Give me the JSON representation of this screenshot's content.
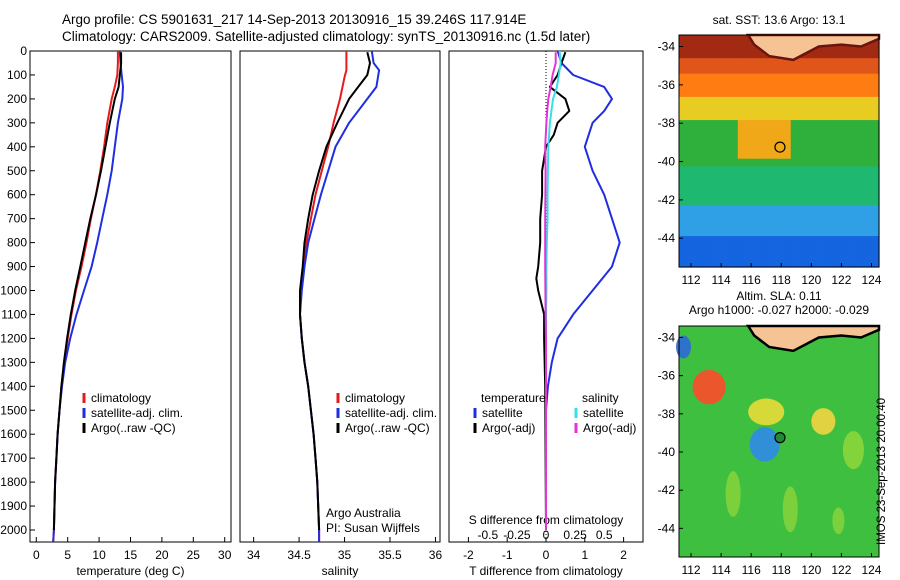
{
  "header": {
    "title1": "Argo profile: CS 5901631_217 14-Sep-2013 20130916_15 39.246S 117.914E",
    "title2": "Climatology: CARS2009. Satellite-adjusted climatology: synTS_20130916.nc (1.5d later)"
  },
  "colors": {
    "climatology": "#e41a1c",
    "satellite": "#1f2ee0",
    "argo": "#000000",
    "satellite_s": "#33e0e8",
    "argo_s": "#e632d6"
  },
  "notes": {
    "agency": "Argo Australia",
    "pi": "PI: Susan Wijffels",
    "credit": "IMOS 23-Sep-2013 20:00:40"
  },
  "chart_data": [
    {
      "type": "line",
      "xlabel": "temperature (deg C)",
      "ylabel": "",
      "xlim": [
        -1,
        31
      ],
      "ylim": [
        2100,
        0
      ],
      "xticks": [
        "0",
        "5",
        "10",
        "15",
        "20",
        "25",
        "30"
      ],
      "yticks": [
        "0",
        "100",
        "200",
        "300",
        "400",
        "500",
        "600",
        "700",
        "800",
        "900",
        "1000",
        "1100",
        "1200",
        "1300",
        "1400",
        "1500",
        "1600",
        "1700",
        "1800",
        "1900",
        "2000"
      ],
      "legend": [
        "climatology",
        "satellite-adj. clim.",
        "Argo(..raw -QC)"
      ],
      "series": [
        {
          "name": "climatology",
          "color": "#e41a1c",
          "points": [
            [
              13,
              0
            ],
            [
              13,
              50
            ],
            [
              12.9,
              100
            ],
            [
              12.5,
              150
            ],
            [
              12,
              200
            ],
            [
              11.3,
              300
            ],
            [
              10.8,
              400
            ],
            [
              10.2,
              500
            ],
            [
              9.5,
              600
            ],
            [
              8.7,
              700
            ],
            [
              8,
              800
            ],
            [
              7.2,
              900
            ],
            [
              6.3,
              1000
            ],
            [
              5.6,
              1100
            ],
            [
              5,
              1200
            ],
            [
              4.5,
              1300
            ],
            [
              4,
              1400
            ],
            [
              3.7,
              1500
            ],
            [
              3.4,
              1600
            ],
            [
              3.2,
              1700
            ],
            [
              3,
              1800
            ],
            [
              2.9,
              1900
            ],
            [
              2.8,
              2000
            ],
            [
              2.7,
              2050
            ]
          ]
        },
        {
          "name": "satellite-adj. clim.",
          "color": "#1f2ee0",
          "points": [
            [
              13.3,
              0
            ],
            [
              13.4,
              50
            ],
            [
              13.6,
              100
            ],
            [
              13.8,
              150
            ],
            [
              13.7,
              200
            ],
            [
              13,
              300
            ],
            [
              12.5,
              400
            ],
            [
              12,
              500
            ],
            [
              11.3,
              600
            ],
            [
              10.5,
              700
            ],
            [
              9.7,
              800
            ],
            [
              8.8,
              900
            ],
            [
              7.6,
              1000
            ],
            [
              6.4,
              1100
            ],
            [
              5.4,
              1200
            ],
            [
              4.6,
              1300
            ],
            [
              4.1,
              1400
            ],
            [
              3.7,
              1500
            ],
            [
              3.4,
              1600
            ],
            [
              3.2,
              1700
            ],
            [
              3,
              1800
            ],
            [
              2.9,
              1900
            ],
            [
              2.8,
              2000
            ],
            [
              2.7,
              2050
            ]
          ]
        },
        {
          "name": "Argo(..raw -QC)",
          "color": "#000000",
          "points": [
            [
              13.5,
              5
            ],
            [
              13.5,
              50
            ],
            [
              13.3,
              100
            ],
            [
              13.1,
              150
            ],
            [
              12.5,
              200
            ],
            [
              11.7,
              300
            ],
            [
              11,
              400
            ],
            [
              10.3,
              500
            ],
            [
              9.5,
              600
            ],
            [
              8.6,
              700
            ],
            [
              7.8,
              800
            ],
            [
              7,
              900
            ],
            [
              6.2,
              1000
            ],
            [
              5.5,
              1100
            ],
            [
              4.9,
              1200
            ],
            [
              4.4,
              1300
            ],
            [
              4,
              1400
            ],
            [
              3.7,
              1500
            ],
            [
              3.4,
              1600
            ],
            [
              3.2,
              1700
            ],
            [
              3,
              1800
            ],
            [
              2.9,
              1900
            ],
            [
              2.8,
              2000
            ]
          ]
        }
      ]
    },
    {
      "type": "line",
      "xlabel": "salinity",
      "xlim": [
        33.85,
        36.05
      ],
      "ylim": [
        2100,
        0
      ],
      "xticks": [
        "34",
        "34.5",
        "35",
        "35.5",
        "36"
      ],
      "legend": [
        "climatology",
        "satellite-adj. clim.",
        "Argo(..raw -QC)"
      ],
      "series": [
        {
          "name": "climatology",
          "color": "#e41a1c",
          "points": [
            [
              35.02,
              0
            ],
            [
              35.02,
              80
            ],
            [
              35,
              110
            ],
            [
              34.95,
              200
            ],
            [
              34.88,
              300
            ],
            [
              34.82,
              400
            ],
            [
              34.75,
              500
            ],
            [
              34.68,
              600
            ],
            [
              34.63,
              700
            ],
            [
              34.58,
              800
            ],
            [
              34.55,
              900
            ],
            [
              34.52,
              1000
            ],
            [
              34.51,
              1100
            ],
            [
              34.53,
              1200
            ],
            [
              34.56,
              1300
            ],
            [
              34.6,
              1400
            ],
            [
              34.63,
              1500
            ],
            [
              34.66,
              1600
            ],
            [
              34.68,
              1700
            ],
            [
              34.7,
              1800
            ],
            [
              34.71,
              1900
            ],
            [
              34.72,
              2000
            ],
            [
              34.72,
              2050
            ]
          ]
        },
        {
          "name": "satellite-adj. clim.",
          "color": "#1f2ee0",
          "points": [
            [
              35.3,
              0
            ],
            [
              35.32,
              50
            ],
            [
              35.38,
              80
            ],
            [
              35.35,
              150
            ],
            [
              35.25,
              200
            ],
            [
              35.05,
              300
            ],
            [
              34.9,
              400
            ],
            [
              34.82,
              500
            ],
            [
              34.74,
              600
            ],
            [
              34.67,
              700
            ],
            [
              34.6,
              800
            ],
            [
              34.56,
              900
            ],
            [
              34.53,
              1000
            ],
            [
              34.51,
              1100
            ],
            [
              34.53,
              1200
            ],
            [
              34.56,
              1300
            ],
            [
              34.6,
              1400
            ],
            [
              34.63,
              1500
            ],
            [
              34.66,
              1600
            ],
            [
              34.68,
              1700
            ],
            [
              34.7,
              1800
            ],
            [
              34.71,
              1900
            ],
            [
              34.72,
              2000
            ],
            [
              34.72,
              2050
            ]
          ]
        },
        {
          "name": "Argo(..raw -QC)",
          "color": "#000000",
          "points": [
            [
              35.25,
              5
            ],
            [
              35.28,
              50
            ],
            [
              35.25,
              100
            ],
            [
              35.15,
              150
            ],
            [
              35.05,
              200
            ],
            [
              34.92,
              300
            ],
            [
              34.8,
              400
            ],
            [
              34.72,
              500
            ],
            [
              34.65,
              600
            ],
            [
              34.6,
              700
            ],
            [
              34.56,
              800
            ],
            [
              34.54,
              900
            ],
            [
              34.51,
              1000
            ],
            [
              34.51,
              1100
            ],
            [
              34.53,
              1200
            ],
            [
              34.56,
              1300
            ],
            [
              34.6,
              1400
            ],
            [
              34.63,
              1500
            ],
            [
              34.66,
              1600
            ],
            [
              34.68,
              1700
            ],
            [
              34.7,
              1800
            ],
            [
              34.71,
              1900
            ],
            [
              34.72,
              2000
            ]
          ]
        }
      ]
    },
    {
      "type": "line",
      "xlabel": "T difference from climatology",
      "xlabel2": "S difference from climatology",
      "xlim": [
        -2.5,
        2.5
      ],
      "ylim": [
        2100,
        0
      ],
      "xticks": [
        "-2",
        "-1",
        "0",
        "1",
        "2"
      ],
      "xticks_s": [
        "-0.5",
        "-0.25",
        "0",
        "0.25",
        "0.5"
      ],
      "legend_t": {
        "title": "temperature",
        "items": [
          "satellite",
          "Argo(-adj)"
        ]
      },
      "legend_s": {
        "title": "salinity",
        "items": [
          "satellite",
          "Argo(-adj)"
        ]
      },
      "series": [
        {
          "name": "satellite",
          "color": "#1f2ee0",
          "points": [
            [
              0.3,
              0
            ],
            [
              0.4,
              50
            ],
            [
              0.7,
              100
            ],
            [
              1.5,
              150
            ],
            [
              1.7,
              200
            ],
            [
              1.5,
              250
            ],
            [
              1.2,
              300
            ],
            [
              1,
              400
            ],
            [
              1.2,
              500
            ],
            [
              1.5,
              600
            ],
            [
              1.7,
              700
            ],
            [
              1.9,
              800
            ],
            [
              1.7,
              900
            ],
            [
              1.2,
              1000
            ],
            [
              0.7,
              1100
            ],
            [
              0.3,
              1200
            ],
            [
              0.15,
              1300
            ],
            [
              0.05,
              1400
            ],
            [
              0,
              1500
            ],
            [
              0,
              2000
            ]
          ]
        },
        {
          "name": "Argo(-adj)",
          "color": "#000000",
          "points": [
            [
              0.5,
              5
            ],
            [
              0.4,
              50
            ],
            [
              0.3,
              100
            ],
            [
              0.1,
              150
            ],
            [
              0.5,
              200
            ],
            [
              0.6,
              250
            ],
            [
              0.3,
              300
            ],
            [
              0.2,
              350
            ],
            [
              0,
              400
            ],
            [
              -0.1,
              500
            ],
            [
              -0.1,
              600
            ],
            [
              -0.15,
              700
            ],
            [
              -0.15,
              800
            ],
            [
              -0.2,
              900
            ],
            [
              -0.25,
              950
            ],
            [
              -0.2,
              1000
            ],
            [
              -0.05,
              1100
            ],
            [
              -0.05,
              1200
            ],
            [
              -0.02,
              1400
            ],
            [
              0,
              2000
            ]
          ]
        },
        {
          "name": "satellite",
          "color": "#33e0e8",
          "points": [
            [
              0.35,
              0
            ],
            [
              0.38,
              50
            ],
            [
              0.33,
              100
            ],
            [
              0.28,
              150
            ],
            [
              0.18,
              200
            ],
            [
              0.1,
              300
            ],
            [
              0.06,
              400
            ],
            [
              0.05,
              500
            ],
            [
              0.04,
              600
            ],
            [
              0.04,
              700
            ],
            [
              0.02,
              800
            ],
            [
              0.01,
              900
            ],
            [
              0.01,
              1000
            ],
            [
              0,
              1100
            ],
            [
              0,
              2000
            ]
          ]
        },
        {
          "name": "Argo(-adj)",
          "color": "#e632d6",
          "points": [
            [
              0.25,
              5
            ],
            [
              0.25,
              50
            ],
            [
              0.17,
              100
            ],
            [
              0.12,
              150
            ],
            [
              0.06,
              200
            ],
            [
              0.03,
              250
            ],
            [
              0.01,
              300
            ],
            [
              -0.02,
              400
            ],
            [
              -0.01,
              500
            ],
            [
              -0.02,
              700
            ],
            [
              -0.02,
              900
            ],
            [
              -0.01,
              1100
            ],
            [
              0,
              1200
            ],
            [
              0,
              2000
            ]
          ]
        }
      ]
    },
    {
      "type": "heatmap",
      "title": "sat. SST: 13.6  Argo: 13.1",
      "xlim": [
        111.2,
        124.5
      ],
      "ylim": [
        -45.5,
        -33.4
      ],
      "xticks": [
        "112",
        "114",
        "116",
        "118",
        "120",
        "122",
        "124"
      ],
      "yticks": [
        "-34",
        "-36",
        "-38",
        "-40",
        "-42",
        "-44"
      ],
      "marker": {
        "lon": 117.914,
        "lat": -39.246
      }
    },
    {
      "type": "heatmap",
      "title": "Altim. SLA: 0.11",
      "subtitle": "Argo h1000: -0.027 h2000: -0.029",
      "xlim": [
        111.2,
        124.5
      ],
      "ylim": [
        -45.5,
        -33.4
      ],
      "xticks": [
        "112",
        "114",
        "116",
        "118",
        "120",
        "122",
        "124"
      ],
      "yticks": [
        "-34",
        "-36",
        "-38",
        "-40",
        "-42",
        "-44"
      ],
      "marker": {
        "lon": 117.914,
        "lat": -39.246
      }
    }
  ]
}
